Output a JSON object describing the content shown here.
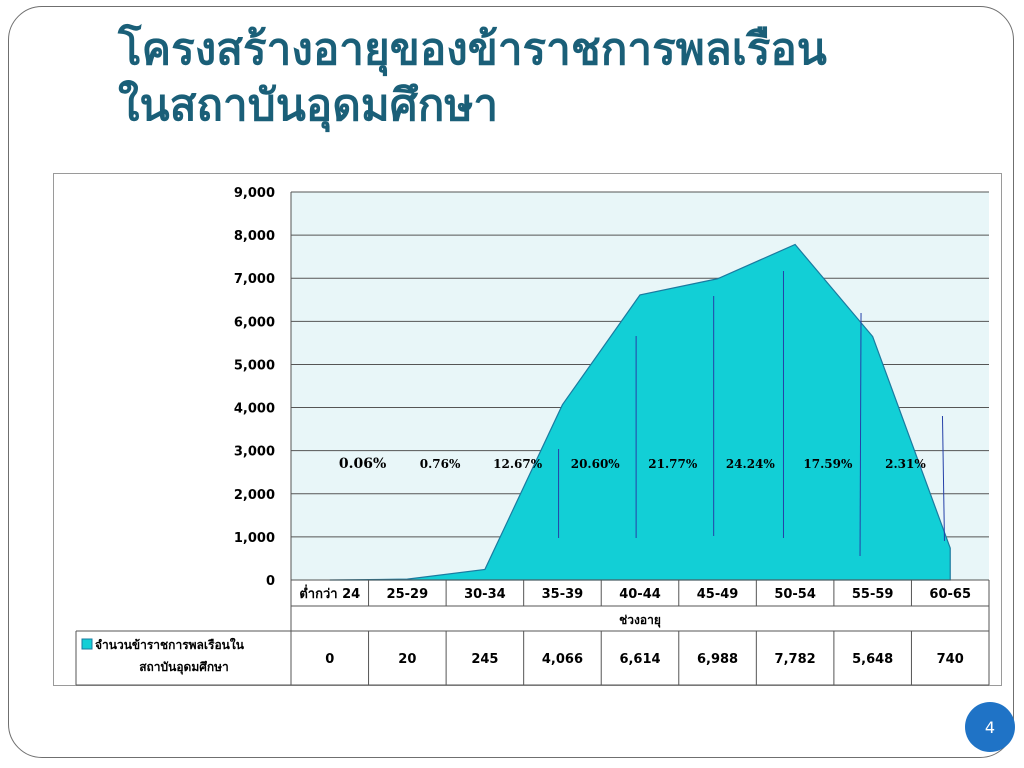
{
  "slide": {
    "title_line1": "โครงสร้างอายุของข้าราชการพลเรือน",
    "title_line2": "ในสถาบันอุดมศึกษา",
    "page_number": "4"
  },
  "colors": {
    "title": "#1a5f78",
    "area_fill": "#12cfd6",
    "area_stroke": "#1a7ba0",
    "plot_bg": "#e8f6f8",
    "marker_lines": "#2540a8",
    "page_badge": "#1f73c6"
  },
  "chart_data": {
    "type": "area",
    "x": [
      "ต่ำกว่า 24",
      "25-29",
      "30-34",
      "35-39",
      "40-44",
      "45-49",
      "50-54",
      "55-59",
      "60-65"
    ],
    "series": [
      {
        "name": "จำนวนข้าราชการพลเรือนในสถาบันอุดมศึกษา",
        "values": [
          0,
          20,
          245,
          4066,
          6614,
          6988,
          7782,
          5648,
          740
        ]
      }
    ],
    "value_labels": [
      "0",
      "20",
      "245",
      "4,066",
      "6,614",
      "6,988",
      "7,782",
      "5,648",
      "740"
    ],
    "percent_labels": [
      "0.06%",
      "0.76%",
      "12.67%",
      "20.60%",
      "21.77%",
      "24.24%",
      "17.59%",
      "2.31%"
    ],
    "xlabel": "ช่วงอายุ",
    "ylim": [
      0,
      9000
    ],
    "yticks": [
      0,
      1000,
      2000,
      3000,
      4000,
      5000,
      6000,
      7000,
      8000,
      9000
    ],
    "ytick_labels": [
      "0",
      "1,000",
      "2,000",
      "3,000",
      "4,000",
      "5,000",
      "6,000",
      "7,000",
      "8,000",
      "9,000"
    ],
    "grid": true,
    "legend_placement": "data-table-left"
  }
}
